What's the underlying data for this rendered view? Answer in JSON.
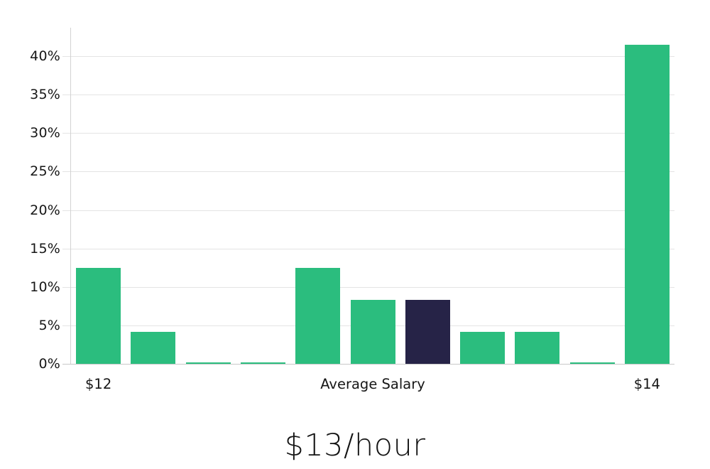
{
  "chart_data": {
    "type": "bar",
    "title": "$13/hour",
    "values": [
      12.5,
      4.2,
      0.2,
      0.2,
      12.5,
      8.3,
      8.3,
      4.2,
      4.2,
      0.2,
      41.5
    ],
    "highlighted_index": 6,
    "x_tick_labels": [
      {
        "index": 0,
        "label": "$12"
      },
      {
        "index": 5,
        "label": "Average Salary"
      },
      {
        "index": 10,
        "label": "$14"
      }
    ],
    "y_ticks": [
      0,
      5,
      10,
      15,
      20,
      25,
      30,
      35,
      40
    ],
    "y_tick_labels": [
      "0%",
      "5%",
      "10%",
      "15%",
      "20%",
      "25%",
      "30%",
      "35%",
      "40%"
    ],
    "ylim": [
      0,
      43.7
    ],
    "grid": "horizontal",
    "legend": "none",
    "colors": {
      "bar": "#2bbd7e",
      "highlight": "#262347",
      "grid": "#e4e4e4",
      "zero_line": "#c9c9c9",
      "spine": "#d2d2d2",
      "text": "#161616"
    }
  }
}
